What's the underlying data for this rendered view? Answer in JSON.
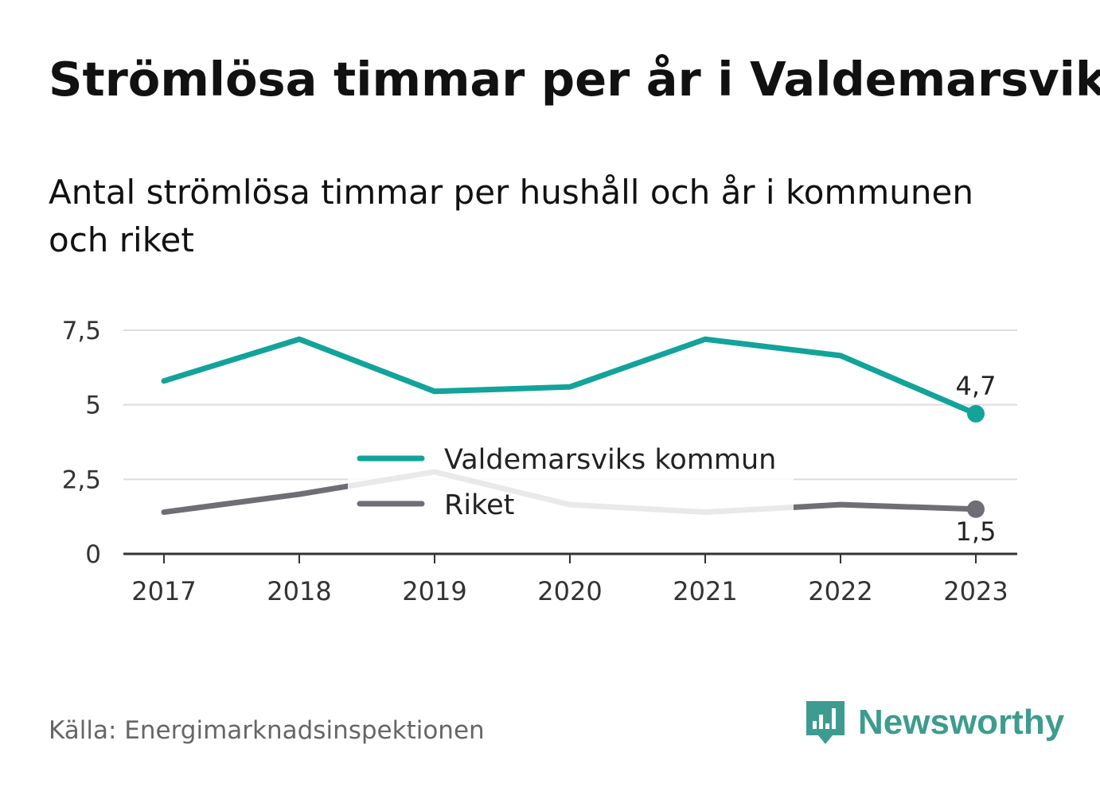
{
  "header": {
    "title": "Strömlösa timmar per år i Valdemarsvik",
    "subtitle": "Antal strömlösa timmar per hushåll och år i kommunen och riket"
  },
  "chart_data": {
    "type": "line",
    "title": "Strömlösa timmar per år i Valdemarsvik",
    "subtitle": "Antal strömlösa timmar per hushåll och år i kommunen och riket",
    "xlabel": "",
    "ylabel": "",
    "categories": [
      "2017",
      "2018",
      "2019",
      "2020",
      "2021",
      "2022",
      "2023"
    ],
    "ylim": [
      0,
      7.5
    ],
    "yticks": [
      0,
      2.5,
      5,
      7.5
    ],
    "ytick_labels": [
      "0",
      "2,5",
      "5",
      "7,5"
    ],
    "grid": true,
    "legend_position": "center",
    "series": [
      {
        "name": "Valdemarsviks kommun",
        "values": [
          5.8,
          7.2,
          5.45,
          5.6,
          7.2,
          6.65,
          4.7
        ],
        "color": "#12a39a",
        "end_label": "4,7"
      },
      {
        "name": "Riket",
        "values": [
          1.4,
          2.0,
          2.75,
          1.65,
          1.4,
          1.65,
          1.5
        ],
        "color": "#6f6e75",
        "end_label": "1,5"
      }
    ]
  },
  "footer": {
    "source": "Källa: Energimarknadsinspektionen",
    "brand": "Newsworthy",
    "brand_icon": "newsworthy-logo-icon",
    "brand_color": "#3d9c8f"
  }
}
